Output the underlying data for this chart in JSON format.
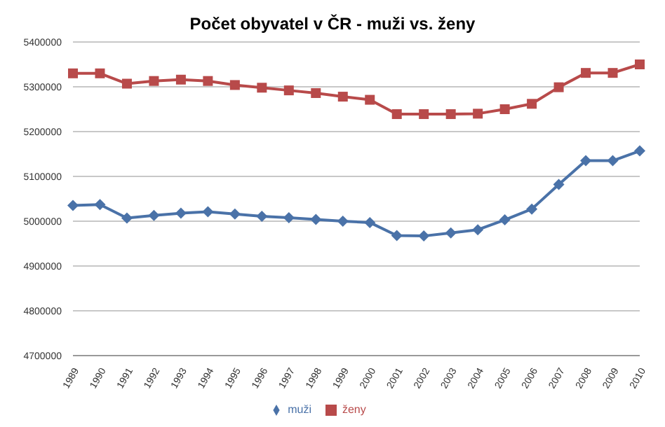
{
  "chart_data": {
    "type": "line",
    "title": "Počet obyvatel v ČR - muži vs. ženy",
    "categories": [
      "1989",
      "1990",
      "1991",
      "1992",
      "1993",
      "1994",
      "1995",
      "1996",
      "1997",
      "1998",
      "1999",
      "2000",
      "2001",
      "2002",
      "2003",
      "2004",
      "2005",
      "2006",
      "2007",
      "2008",
      "2009",
      "2010"
    ],
    "series": [
      {
        "name": "muži",
        "color": "#4a72a8",
        "marker": "diamond",
        "values": [
          5035000,
          5037000,
          5007000,
          5013000,
          5018000,
          5021000,
          5016000,
          5011000,
          5008000,
          5004000,
          5000000,
          4997000,
          4968000,
          4967000,
          4974000,
          4981000,
          5003000,
          5027000,
          5082000,
          5135000,
          5135000,
          5157000
        ]
      },
      {
        "name": "ženy",
        "color": "#b84a4a",
        "marker": "square",
        "values": [
          5330000,
          5330000,
          5307000,
          5313000,
          5316000,
          5313000,
          5304000,
          5298000,
          5292000,
          5286000,
          5278000,
          5271000,
          5239000,
          5239000,
          5239000,
          5240000,
          5250000,
          5262000,
          5299000,
          5331000,
          5331000,
          5350000
        ]
      }
    ],
    "ylim": [
      4700000,
      5400000
    ],
    "yticks": [
      4700000,
      4800000,
      4900000,
      5000000,
      5100000,
      5200000,
      5300000,
      5400000
    ],
    "grid": "y",
    "legend": "bottom"
  }
}
